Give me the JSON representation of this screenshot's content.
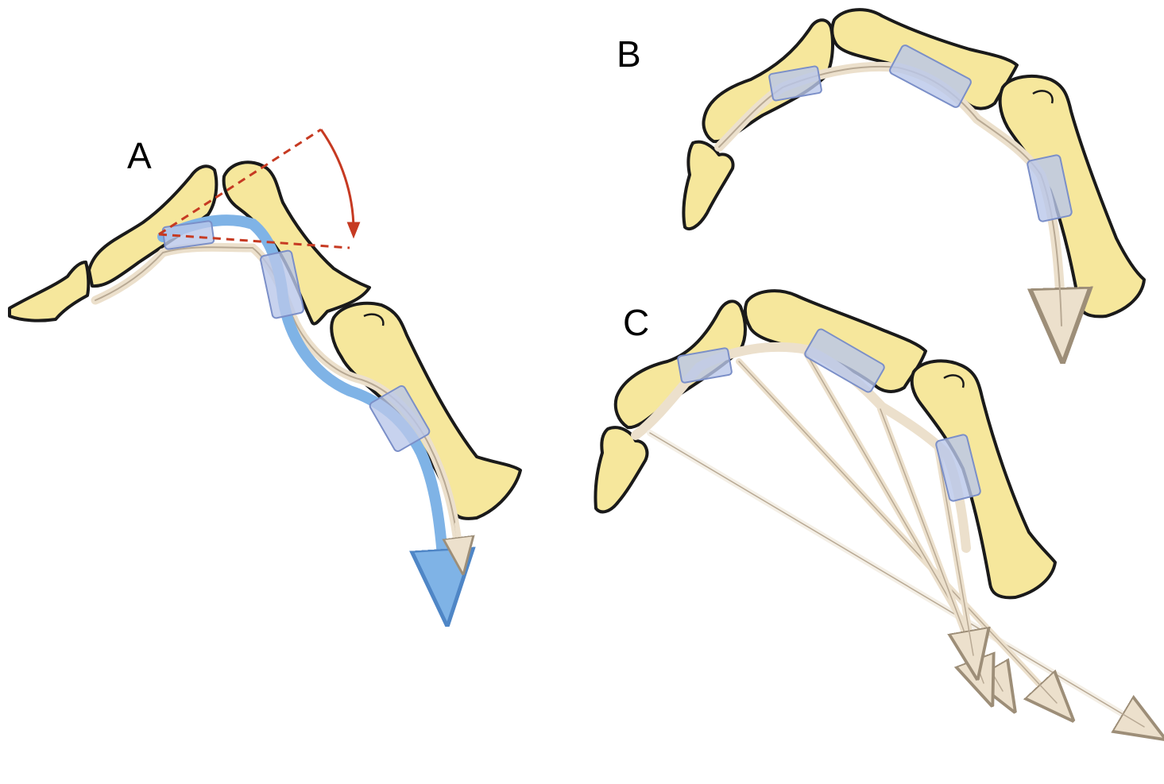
{
  "panels": {
    "a": {
      "label": "A"
    },
    "b": {
      "label": "B"
    },
    "c": {
      "label": "C"
    }
  },
  "colors": {
    "bone_fill": "#f6e79c",
    "bone_outline": "#1a1a1a",
    "tendon": "#ece0cc",
    "tendon_edge": "#b8a994",
    "pulley": "#b9c7ea",
    "pulley_edge": "#7b8fc8",
    "displaced_tendon": "#7fb3e6",
    "rotation_arrow": "#c63a22",
    "background": "#ffffff"
  },
  "icons": {
    "rotation": "curved-arrow-icon",
    "pull": "arrow-down-icon"
  }
}
